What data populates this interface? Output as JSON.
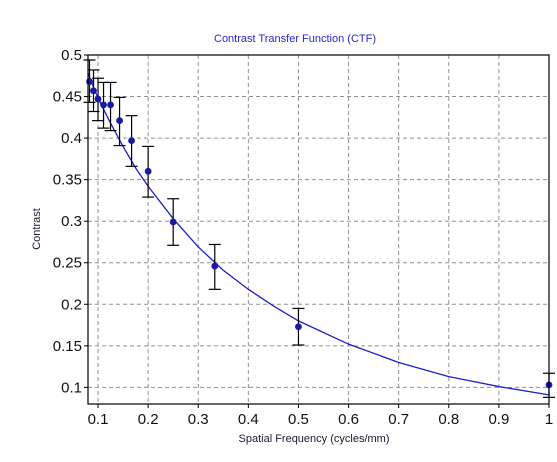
{
  "chart_data": {
    "type": "scatter",
    "title": "Contrast Transfer Function (CTF)",
    "xlabel": "Spatial Frequency (cycles/mm)",
    "ylabel": "Contrast",
    "xlim": [
      0.08,
      1.0
    ],
    "ylim": [
      0.08,
      0.5
    ],
    "x_ticks": [
      0.1,
      0.2,
      0.3,
      0.4,
      0.5,
      0.6,
      0.7,
      0.8,
      0.9,
      1
    ],
    "x_tick_labels": [
      "0.1",
      "0.2",
      "0.3",
      "0.4",
      "0.5",
      "0.6",
      "0.7",
      "0.8",
      "0.9",
      "1"
    ],
    "y_ticks": [
      0.1,
      0.15,
      0.2,
      0.25,
      0.3,
      0.35,
      0.4,
      0.45,
      0.5
    ],
    "y_tick_labels": [
      "0.1",
      "0.15",
      "0.2",
      "0.25",
      "0.3",
      "0.35",
      "0.4",
      "0.45",
      "0.5"
    ],
    "grid": true,
    "legend": "none",
    "series": [
      {
        "points": [
          {
            "x": 0.083,
            "y": 0.468,
            "err_low": 0.443,
            "err_high": 0.494
          },
          {
            "x": 0.091,
            "y": 0.457,
            "err_low": 0.432,
            "err_high": 0.482
          },
          {
            "x": 0.1,
            "y": 0.447,
            "err_low": 0.421,
            "err_high": 0.472
          },
          {
            "x": 0.111,
            "y": 0.44,
            "err_low": 0.412,
            "err_high": 0.467
          },
          {
            "x": 0.125,
            "y": 0.44,
            "err_low": 0.409,
            "err_high": 0.467
          },
          {
            "x": 0.143,
            "y": 0.421,
            "err_low": 0.391,
            "err_high": 0.449
          },
          {
            "x": 0.167,
            "y": 0.397,
            "err_low": 0.366,
            "err_high": 0.427
          },
          {
            "x": 0.2,
            "y": 0.36,
            "err_low": 0.329,
            "err_high": 0.39
          },
          {
            "x": 0.25,
            "y": 0.299,
            "err_low": 0.271,
            "err_high": 0.327
          },
          {
            "x": 0.333,
            "y": 0.246,
            "err_low": 0.218,
            "err_high": 0.272
          },
          {
            "x": 0.5,
            "y": 0.173,
            "err_low": 0.151,
            "err_high": 0.195
          },
          {
            "x": 1.0,
            "y": 0.103,
            "err_low": 0.088,
            "err_high": 0.117
          }
        ]
      }
    ],
    "fit_curve": {
      "x": [
        0.08,
        0.1,
        0.125,
        0.15,
        0.175,
        0.2,
        0.25,
        0.3,
        0.35,
        0.4,
        0.45,
        0.5,
        0.6,
        0.7,
        0.8,
        0.9,
        1.0
      ],
      "y": [
        0.478,
        0.448,
        0.418,
        0.39,
        0.364,
        0.342,
        0.303,
        0.269,
        0.241,
        0.218,
        0.198,
        0.18,
        0.152,
        0.13,
        0.113,
        0.101,
        0.091
      ]
    },
    "colors": {
      "points": "#1a1aa0",
      "fit_line": "#1f1fcc",
      "error_bars": "#000000",
      "title": "#2828c8",
      "grid": "#909090"
    }
  }
}
